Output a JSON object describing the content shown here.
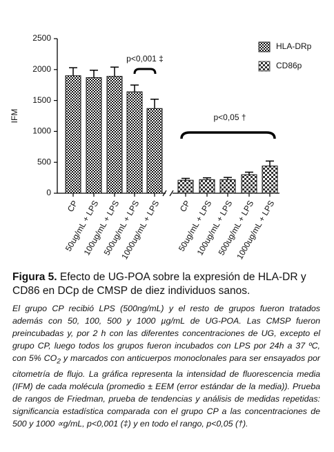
{
  "chart_data": {
    "type": "bar",
    "y_label": "IFM",
    "categories": [
      "CP",
      "50ug/mL + LPS",
      "100ug/mL + LPS",
      "500ug/mL + LPS",
      "1000ug/mL + LPS",
      "CP",
      "50ug/mL + LPS",
      "100ug/mL + LPS",
      "500ug/mL + LPS",
      "1000ug/mL + LPS"
    ],
    "series": [
      {
        "name": "HLA-DRp",
        "color": "#222222",
        "values": [
          1900,
          1870,
          1890,
          1640,
          1370,
          null,
          null,
          null,
          null,
          null
        ],
        "errors": [
          130,
          120,
          150,
          110,
          150,
          null,
          null,
          null,
          null,
          null
        ]
      },
      {
        "name": "CD86p",
        "color": "#555555",
        "values": [
          null,
          null,
          null,
          null,
          null,
          210,
          220,
          220,
          300,
          440
        ],
        "errors": [
          null,
          null,
          null,
          null,
          null,
          30,
          30,
          35,
          40,
          80
        ]
      }
    ],
    "ylim": [
      0,
      2500
    ],
    "yticks": [
      0,
      500,
      1000,
      1500,
      2000,
      2500
    ],
    "legend": "top-right",
    "annotations": [
      "p<0,001 ‡",
      "p<0,05 †"
    ]
  },
  "caption": {
    "label": "Figura 5.",
    "title": " Efecto de UG-POA sobre la expresión de HLA-DR y CD86 en DCp de CMSP de diez individuos sanos.",
    "body": [
      "El grupo CP recibió LPS (500ng/mL) y el resto de grupos fueron tratados además con 50, 100, 500 y 1000 µg/mL de UG-POA. Las CMSP fueron preincubadas y, por 2 h con las diferentes concentraciones de UG, excepto el grupo CP, luego todos los grupos fueron incubados con LPS por 24h a 37 ºC, con 5% CO",
      "2",
      " y marcados con anticuerpos monoclonales para ser ensayados por citometría de flujo. La gráfica representa la intensidad de fluorescencia media (IFM) de cada molécula (promedio ± EEM (error estándar de la media)). Prueba de rangos de Friedman, prueba de tendencias y análisis de medidas repetidas: significancia estadística comparada con el grupo CP a las concentraciones de 500 y 1000 ∝g/mL, p<0,001 (‡)  y en todo el rango, p<0,05 (†)."
    ]
  }
}
